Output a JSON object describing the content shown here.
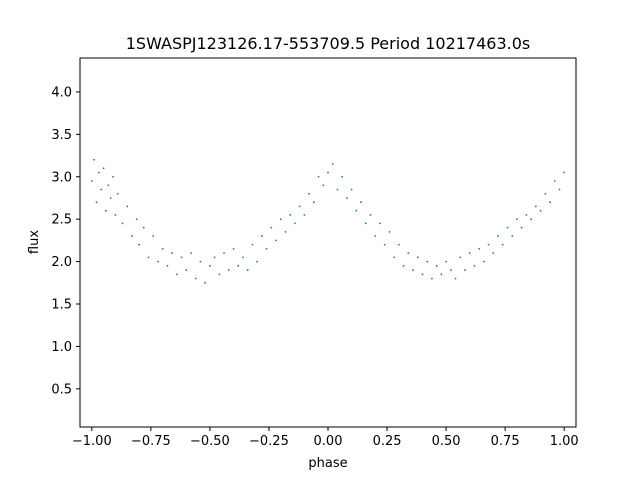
{
  "chart_data": {
    "type": "scatter",
    "title": "1SWASPJ123126.17-553709.5 Period 10217463.0s",
    "xlabel": "phase",
    "ylabel": "flux",
    "xlim": [
      -1.05,
      1.05
    ],
    "ylim": [
      0.05,
      4.4
    ],
    "grid": false,
    "legend": "none",
    "marker_color": "#1f77b4",
    "x_ticks": [
      {
        "value": -1.0,
        "label": "−1.00"
      },
      {
        "value": -0.75,
        "label": "−0.75"
      },
      {
        "value": -0.5,
        "label": "−0.50"
      },
      {
        "value": -0.25,
        "label": "−0.25"
      },
      {
        "value": 0.0,
        "label": "0.00"
      },
      {
        "value": 0.25,
        "label": "0.25"
      },
      {
        "value": 0.5,
        "label": "0.50"
      },
      {
        "value": 0.75,
        "label": "0.75"
      },
      {
        "value": 1.0,
        "label": "1.00"
      }
    ],
    "y_ticks": [
      {
        "value": 0.5,
        "label": "0.5"
      },
      {
        "value": 1.0,
        "label": "1.0"
      },
      {
        "value": 1.5,
        "label": "1.5"
      },
      {
        "value": 2.0,
        "label": "2.0"
      },
      {
        "value": 2.5,
        "label": "2.5"
      },
      {
        "value": 3.0,
        "label": "3.0"
      },
      {
        "value": 3.5,
        "label": "3.5"
      },
      {
        "value": 4.0,
        "label": "4.0"
      }
    ],
    "series": [
      {
        "description_of_shape": "folded light curve: flux vs phase, mirrored for phase in [-1,0] and [0,1]",
        "points": [
          [
            -1.0,
            2.95
          ],
          [
            -0.99,
            3.2
          ],
          [
            -0.98,
            2.7
          ],
          [
            -0.97,
            3.05
          ],
          [
            -0.96,
            2.85
          ],
          [
            -0.95,
            3.1
          ],
          [
            -0.94,
            2.6
          ],
          [
            -0.93,
            2.9
          ],
          [
            -0.92,
            2.75
          ],
          [
            -0.91,
            3.0
          ],
          [
            -0.9,
            2.55
          ],
          [
            -0.89,
            2.8
          ],
          [
            -0.87,
            2.45
          ],
          [
            -0.85,
            2.65
          ],
          [
            -0.83,
            2.3
          ],
          [
            -0.81,
            2.5
          ],
          [
            -0.8,
            2.2
          ],
          [
            -0.78,
            2.4
          ],
          [
            -0.76,
            2.05
          ],
          [
            -0.74,
            2.3
          ],
          [
            -0.72,
            2.0
          ],
          [
            -0.7,
            2.15
          ],
          [
            -0.68,
            1.95
          ],
          [
            -0.66,
            2.1
          ],
          [
            -0.64,
            1.85
          ],
          [
            -0.62,
            2.05
          ],
          [
            -0.6,
            1.9
          ],
          [
            -0.58,
            2.1
          ],
          [
            -0.56,
            1.8
          ],
          [
            -0.54,
            2.0
          ],
          [
            -0.52,
            1.75
          ],
          [
            -0.5,
            1.95
          ],
          [
            -0.48,
            2.05
          ],
          [
            -0.46,
            1.85
          ],
          [
            -0.44,
            2.1
          ],
          [
            -0.42,
            1.9
          ],
          [
            -0.4,
            2.15
          ],
          [
            -0.38,
            1.95
          ],
          [
            -0.36,
            2.05
          ],
          [
            -0.34,
            1.9
          ],
          [
            -0.32,
            2.2
          ],
          [
            -0.3,
            2.0
          ],
          [
            -0.28,
            2.3
          ],
          [
            -0.26,
            2.15
          ],
          [
            -0.24,
            2.4
          ],
          [
            -0.22,
            2.25
          ],
          [
            -0.2,
            2.5
          ],
          [
            -0.18,
            2.35
          ],
          [
            -0.16,
            2.55
          ],
          [
            -0.14,
            2.45
          ],
          [
            -0.12,
            2.65
          ],
          [
            -0.1,
            2.55
          ],
          [
            -0.08,
            2.8
          ],
          [
            -0.06,
            2.7
          ],
          [
            -0.04,
            3.0
          ],
          [
            -0.02,
            2.9
          ],
          [
            0.0,
            3.05
          ],
          [
            0.02,
            3.15
          ],
          [
            0.04,
            2.85
          ],
          [
            0.06,
            3.0
          ],
          [
            0.08,
            2.75
          ],
          [
            0.1,
            2.85
          ],
          [
            0.12,
            2.6
          ],
          [
            0.14,
            2.7
          ],
          [
            0.16,
            2.45
          ],
          [
            0.18,
            2.55
          ],
          [
            0.2,
            2.3
          ],
          [
            0.22,
            2.45
          ],
          [
            0.24,
            2.2
          ],
          [
            0.26,
            2.35
          ],
          [
            0.28,
            2.05
          ],
          [
            0.3,
            2.2
          ],
          [
            0.32,
            1.95
          ],
          [
            0.34,
            2.1
          ],
          [
            0.36,
            1.9
          ],
          [
            0.38,
            2.05
          ],
          [
            0.4,
            1.85
          ],
          [
            0.42,
            2.0
          ],
          [
            0.44,
            1.8
          ],
          [
            0.46,
            1.95
          ],
          [
            0.48,
            1.85
          ],
          [
            0.5,
            2.0
          ],
          [
            0.52,
            1.9
          ],
          [
            0.54,
            1.8
          ],
          [
            0.56,
            2.05
          ],
          [
            0.58,
            1.9
          ],
          [
            0.6,
            2.1
          ],
          [
            0.62,
            1.95
          ],
          [
            0.64,
            2.15
          ],
          [
            0.66,
            2.0
          ],
          [
            0.68,
            2.2
          ],
          [
            0.7,
            2.1
          ],
          [
            0.72,
            2.3
          ],
          [
            0.74,
            2.2
          ],
          [
            0.76,
            2.4
          ],
          [
            0.78,
            2.3
          ],
          [
            0.8,
            2.5
          ],
          [
            0.82,
            2.4
          ],
          [
            0.84,
            2.55
          ],
          [
            0.86,
            2.5
          ],
          [
            0.88,
            2.65
          ],
          [
            0.9,
            2.6
          ],
          [
            0.92,
            2.8
          ],
          [
            0.94,
            2.7
          ],
          [
            0.96,
            2.95
          ],
          [
            0.98,
            2.85
          ],
          [
            1.0,
            3.05
          ]
        ]
      }
    ]
  }
}
